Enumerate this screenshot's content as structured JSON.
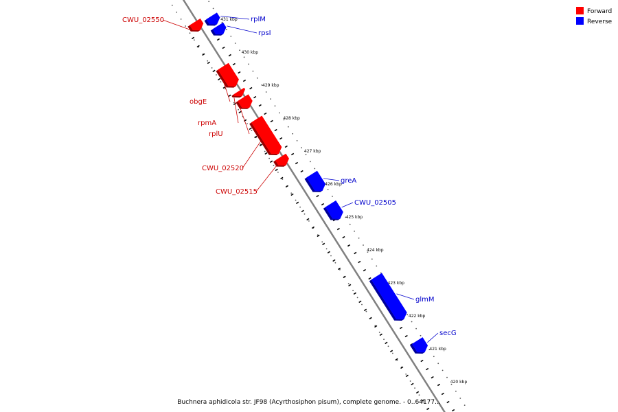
{
  "colors": {
    "forward": "#ff0000",
    "reverse": "#0000ff",
    "forward_label": "#cc0000",
    "reverse_label": "#0000cc",
    "backbone": "#808080",
    "tick": "#000000"
  },
  "legend": {
    "forward": "Forward",
    "reverse": "Reverse"
  },
  "caption": "Buchnera aphidicola str. JF98 (Acyrthosiphon pisum), complete genome. - 0..64177...",
  "chart_data": {
    "type": "linear-genome-map",
    "units": "kbp",
    "tick_labels": [
      "431 kbp",
      "430 kbp",
      "429 kbp",
      "428 kbp",
      "427 kbp",
      "426 kbp",
      "425 kbp",
      "424 kbp",
      "423 kbp",
      "422 kbp",
      "421 kbp",
      "420 kbp"
    ],
    "genes": [
      {
        "name": "CWU_02550",
        "strand": "forward",
        "start": 431.2,
        "end": 430.95
      },
      {
        "name": "rplM",
        "strand": "reverse",
        "start": 431.1,
        "end": 430.85
      },
      {
        "name": "rpsI",
        "strand": "reverse",
        "start": 430.8,
        "end": 430.55
      },
      {
        "name": "obgE",
        "strand": "forward",
        "start": 429.85,
        "end": 429.25
      },
      {
        "name": "rpmA",
        "strand": "forward",
        "start": 429.1,
        "end": 428.95
      },
      {
        "name": "rplU",
        "strand": "forward",
        "start": 428.9,
        "end": 428.6
      },
      {
        "name": "CWU_02520",
        "strand": "forward",
        "start": 428.25,
        "end": 427.2
      },
      {
        "name": "CWU_02515",
        "strand": "forward",
        "start": 427.1,
        "end": 426.85
      },
      {
        "name": "greA",
        "strand": "reverse",
        "start": 426.3,
        "end": 425.8
      },
      {
        "name": "CWU_02505",
        "strand": "reverse",
        "start": 425.4,
        "end": 424.95
      },
      {
        "name": "glmM",
        "strand": "reverse",
        "start": 423.2,
        "end": 421.9
      },
      {
        "name": "secG",
        "strand": "reverse",
        "start": 421.25,
        "end": 420.9
      }
    ]
  }
}
